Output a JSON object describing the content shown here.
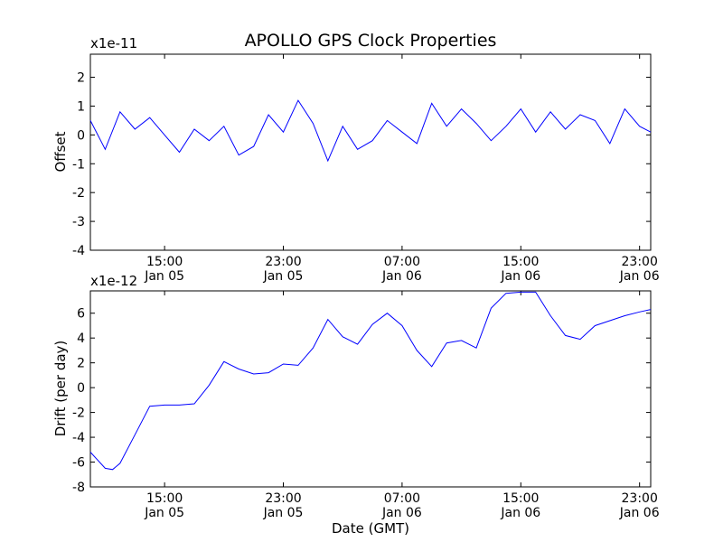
{
  "colors": {
    "series": "#0000ff",
    "axes": "#000000",
    "background": "#ffffff"
  },
  "chart_data": [
    {
      "type": "line",
      "title": "APOLLO GPS Clock Properties",
      "ylabel": "Offset",
      "xlabel": "",
      "y_multiplier": "x1e-11",
      "ylim": [
        -4,
        2.8
      ],
      "xlim": [
        "Jan 05 10:00",
        "Jan 06 23:45"
      ],
      "grid": false,
      "yticks": [
        "2",
        "1",
        "0",
        "-1",
        "-2",
        "-3",
        "-4"
      ],
      "xticks": [
        {
          "time": "15:00",
          "date": "Jan 05"
        },
        {
          "time": "23:00",
          "date": "Jan 05"
        },
        {
          "time": "07:00",
          "date": "Jan 06"
        },
        {
          "time": "15:00",
          "date": "Jan 06"
        },
        {
          "time": "23:00",
          "date": "Jan 06"
        }
      ],
      "series": [
        {
          "x": [
            "Jan 05 10:00",
            "Jan 05 11:00",
            "Jan 05 12:00",
            "Jan 05 13:00",
            "Jan 05 14:00",
            "Jan 05 15:00",
            "Jan 05 16:00",
            "Jan 05 17:00",
            "Jan 05 18:00",
            "Jan 05 19:00",
            "Jan 05 20:00",
            "Jan 05 21:00",
            "Jan 05 22:00",
            "Jan 05 23:00",
            "Jan 06 00:00",
            "Jan 06 01:00",
            "Jan 06 02:00",
            "Jan 06 03:00",
            "Jan 06 04:00",
            "Jan 06 05:00",
            "Jan 06 06:00",
            "Jan 06 07:00",
            "Jan 06 08:00",
            "Jan 06 09:00",
            "Jan 06 10:00",
            "Jan 06 11:00",
            "Jan 06 12:00",
            "Jan 06 13:00",
            "Jan 06 14:00",
            "Jan 06 15:00",
            "Jan 06 16:00",
            "Jan 06 17:00",
            "Jan 06 18:00",
            "Jan 06 19:00",
            "Jan 06 20:00",
            "Jan 06 21:00",
            "Jan 06 22:00",
            "Jan 06 23:00",
            "Jan 06 23:45"
          ],
          "values": [
            0.5,
            -0.5,
            0.8,
            0.2,
            0.6,
            0.0,
            -0.6,
            0.2,
            -0.2,
            0.3,
            -0.7,
            -0.4,
            0.7,
            0.1,
            1.2,
            0.4,
            -0.9,
            0.3,
            -0.5,
            -0.2,
            0.5,
            0.1,
            -0.3,
            1.1,
            0.3,
            0.9,
            0.4,
            -0.2,
            0.3,
            0.9,
            0.1,
            0.8,
            0.2,
            0.7,
            0.5,
            -0.3,
            0.9,
            0.3,
            0.1
          ]
        }
      ]
    },
    {
      "type": "line",
      "title": "",
      "ylabel": "Drift (per day)",
      "xlabel": "Date (GMT)",
      "y_multiplier": "x1e-12",
      "ylim": [
        -8,
        7.8
      ],
      "xlim": [
        "Jan 05 10:00",
        "Jan 06 23:45"
      ],
      "grid": false,
      "yticks": [
        "6",
        "4",
        "2",
        "0",
        "-2",
        "-4",
        "-6",
        "-8"
      ],
      "xticks": [
        {
          "time": "15:00",
          "date": "Jan 05"
        },
        {
          "time": "23:00",
          "date": "Jan 05"
        },
        {
          "time": "07:00",
          "date": "Jan 06"
        },
        {
          "time": "15:00",
          "date": "Jan 06"
        },
        {
          "time": "23:00",
          "date": "Jan 06"
        }
      ],
      "series": [
        {
          "x": [
            "Jan 05 10:00",
            "Jan 05 11:00",
            "Jan 05 11:30",
            "Jan 05 12:00",
            "Jan 05 13:00",
            "Jan 05 14:00",
            "Jan 05 15:00",
            "Jan 05 16:00",
            "Jan 05 17:00",
            "Jan 05 18:00",
            "Jan 05 19:00",
            "Jan 05 20:00",
            "Jan 05 21:00",
            "Jan 05 22:00",
            "Jan 05 23:00",
            "Jan 06 00:00",
            "Jan 06 01:00",
            "Jan 06 02:00",
            "Jan 06 03:00",
            "Jan 06 04:00",
            "Jan 06 05:00",
            "Jan 06 06:00",
            "Jan 06 07:00",
            "Jan 06 08:00",
            "Jan 06 09:00",
            "Jan 06 10:00",
            "Jan 06 11:00",
            "Jan 06 12:00",
            "Jan 06 13:00",
            "Jan 06 14:00",
            "Jan 06 15:00",
            "Jan 06 16:00",
            "Jan 06 17:00",
            "Jan 06 18:00",
            "Jan 06 19:00",
            "Jan 06 20:00",
            "Jan 06 21:00",
            "Jan 06 22:00",
            "Jan 06 23:00",
            "Jan 06 23:45"
          ],
          "values": [
            -5.2,
            -6.5,
            -6.6,
            -6.1,
            -3.8,
            -1.5,
            -1.4,
            -1.4,
            -1.3,
            0.2,
            2.1,
            1.5,
            1.1,
            1.2,
            1.9,
            1.8,
            3.2,
            5.5,
            4.1,
            3.5,
            5.1,
            6.0,
            5.0,
            3.0,
            1.7,
            3.6,
            3.8,
            3.2,
            6.4,
            7.6,
            7.7,
            7.7,
            5.8,
            4.2,
            3.9,
            5.0,
            5.4,
            5.8,
            6.1,
            6.3
          ]
        }
      ]
    }
  ]
}
